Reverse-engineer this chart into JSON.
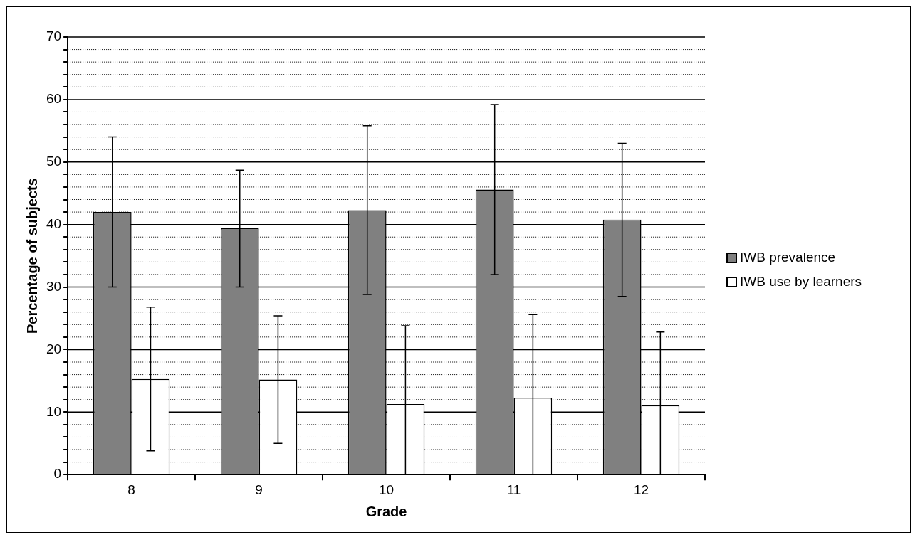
{
  "chart_data": {
    "type": "bar",
    "xlabel": "Grade",
    "ylabel": "Percentage of subjects",
    "categories": [
      "8",
      "9",
      "10",
      "11",
      "12"
    ],
    "series": [
      {
        "name": "IWB prevalence",
        "color": "#808080",
        "values": [
          42,
          39.4,
          42.3,
          45.6,
          40.8
        ],
        "errors": [
          [
            30,
            54
          ],
          [
            30,
            48.7
          ],
          [
            28.8,
            55.8
          ],
          [
            32,
            59.2
          ],
          [
            28.5,
            53
          ]
        ]
      },
      {
        "name": "IWB use by learners",
        "color": "#ffffff",
        "values": [
          15.3,
          15.2,
          11.3,
          12.3,
          11.1
        ],
        "errors": [
          [
            3.8,
            26.8
          ],
          [
            5,
            25.4
          ],
          [
            0,
            23.8
          ],
          [
            0,
            25.6
          ],
          [
            0,
            22.8
          ]
        ]
      }
    ],
    "ylim": [
      0,
      70
    ],
    "yticks": [
      0,
      {
        "value": 2,
        "label": null
      },
      {
        "value": 4,
        "label": null
      },
      {
        "value": 6,
        "label": null
      },
      {
        "value": 8,
        "label": null
      },
      10,
      {
        "value": 12,
        "label": null
      },
      {
        "value": 14,
        "label": null
      },
      {
        "value": 16,
        "label": null
      },
      {
        "value": 18,
        "label": null
      },
      20,
      {
        "value": 22,
        "label": null
      },
      {
        "value": 24,
        "label": null
      },
      {
        "value": 26,
        "label": null
      },
      {
        "value": 28,
        "label": null
      },
      30,
      {
        "value": 32,
        "label": null
      },
      {
        "value": 34,
        "label": null
      },
      {
        "value": 36,
        "label": null
      },
      {
        "value": 38,
        "label": null
      },
      40,
      {
        "value": 42,
        "label": null
      },
      {
        "value": 44,
        "label": null
      },
      {
        "value": 46,
        "label": null
      },
      {
        "value": 48,
        "label": null
      },
      50,
      {
        "value": 52,
        "label": null
      },
      {
        "value": 54,
        "label": null
      },
      {
        "value": 56,
        "label": null
      },
      {
        "value": 58,
        "label": null
      },
      60,
      {
        "value": 62,
        "label": null
      },
      {
        "value": 64,
        "label": null
      },
      {
        "value": 66,
        "label": null
      },
      {
        "value": 68,
        "label": null
      },
      70
    ],
    "grid": true,
    "legend": "right"
  }
}
